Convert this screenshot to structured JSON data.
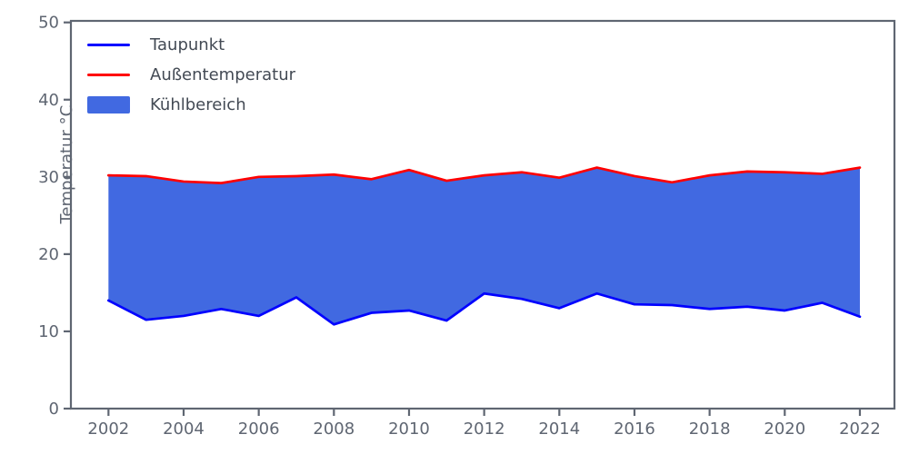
{
  "figure": {
    "background": "#ffffff",
    "axis_color": "#5f6672",
    "tick_label_color": "#5f6672",
    "legend_text_color": "#434a54"
  },
  "chart_data": {
    "type": "area",
    "title": "",
    "xlabel": "",
    "ylabel": "Temperatur °C",
    "x": [
      2002,
      2003,
      2004,
      2005,
      2006,
      2007,
      2008,
      2009,
      2010,
      2011,
      2012,
      2013,
      2014,
      2015,
      2016,
      2017,
      2018,
      2019,
      2020,
      2021,
      2022
    ],
    "series": [
      {
        "name": "Taupunkt",
        "color": "#0000ff",
        "values": [
          14.0,
          11.5,
          12.0,
          12.9,
          12.0,
          14.4,
          10.9,
          12.4,
          12.7,
          11.4,
          14.9,
          14.2,
          13.0,
          14.9,
          13.5,
          13.4,
          12.9,
          13.2,
          12.7,
          13.7,
          11.9
        ]
      },
      {
        "name": "Außentemperatur",
        "color": "#ff0000",
        "values": [
          30.2,
          30.1,
          29.4,
          29.2,
          30.0,
          30.1,
          30.3,
          29.7,
          30.9,
          29.5,
          30.2,
          30.6,
          29.9,
          31.2,
          30.1,
          29.3,
          30.2,
          30.7,
          30.6,
          30.4,
          31.2
        ]
      }
    ],
    "fill_between": {
      "name": "Kühlbereich",
      "color": "#4169e1",
      "lower": "Taupunkt",
      "upper": "Außentemperatur"
    },
    "xticks": [
      2002,
      2004,
      2006,
      2008,
      2010,
      2012,
      2014,
      2016,
      2018,
      2020,
      2022
    ],
    "yticks": [
      0,
      10,
      20,
      30,
      40,
      50
    ],
    "xlim": [
      2001,
      2022.92
    ],
    "ylim": [
      0,
      50.2
    ],
    "grid": false,
    "legend_position": "upper-left"
  }
}
